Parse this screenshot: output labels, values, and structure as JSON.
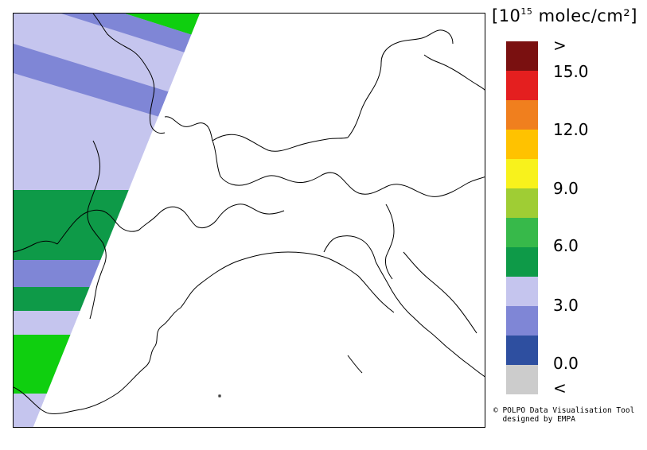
{
  "legend": {
    "title_prefix": "[10",
    "title_exponent": "15",
    "title_suffix": " molec/cm²]",
    "colors": [
      "#7a1010",
      "#e41f1f",
      "#f07f1e",
      "#ffc200",
      "#f8f21c",
      "#9fcd34",
      "#37b94a",
      "#0e9a48",
      "#c5c5ee",
      "#7f86d6",
      "#2e4fa0",
      "#cccccc"
    ],
    "top_label": ">",
    "bottom_label": "<",
    "ticks": [
      "15.0",
      "12.0",
      "9.0",
      "6.0",
      "3.0",
      "0.0"
    ]
  },
  "credit": {
    "line1": "© POLPO Data Visualisation Tool",
    "line2": "  designed by EMPA"
  }
}
